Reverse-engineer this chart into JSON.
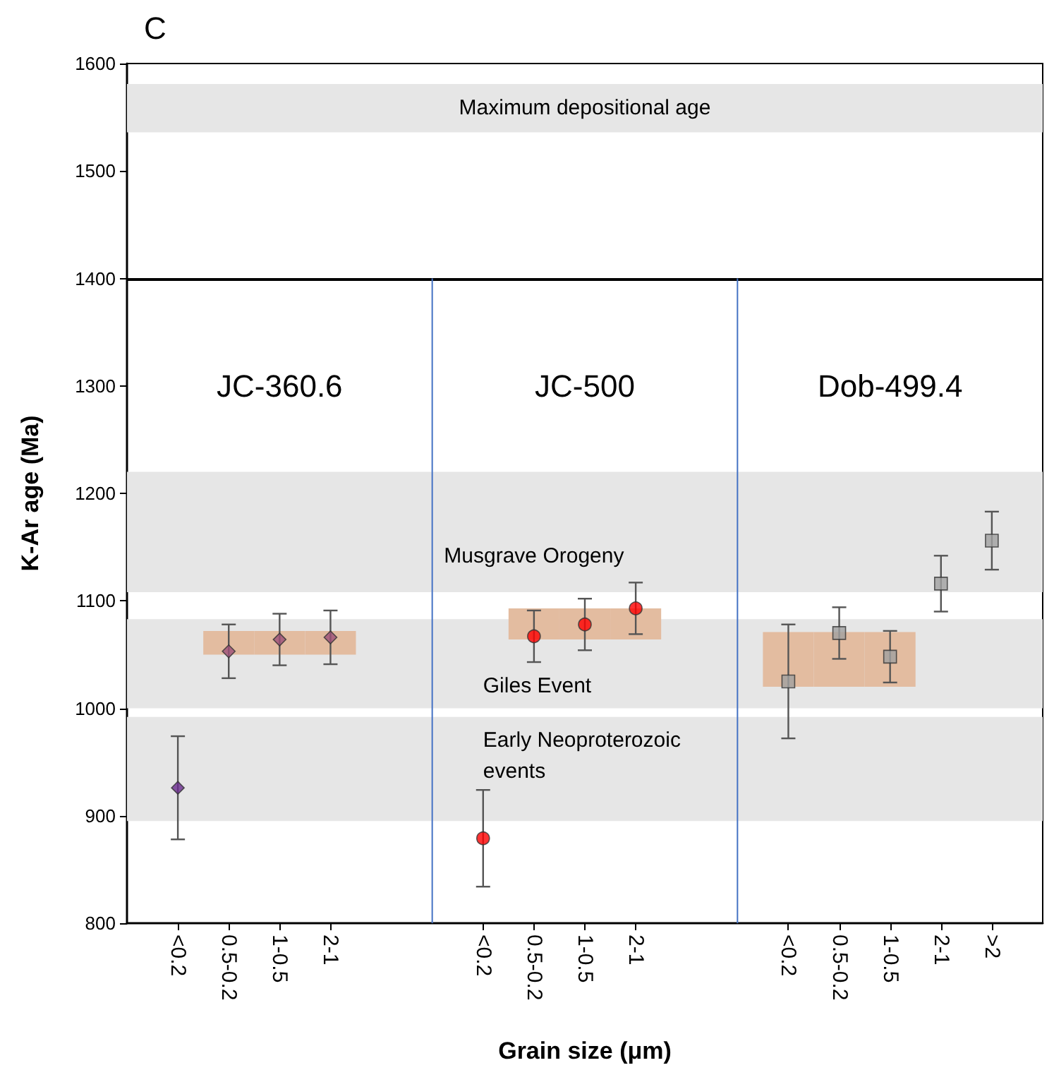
{
  "chart_data": {
    "type": "scatter",
    "title": "C",
    "xlabel": "Grain size (μm)",
    "ylabel": "K-Ar age (Ma)",
    "categories": [
      null,
      "<0.2",
      "0.5-0.2",
      "1-0.5",
      "2-1",
      null,
      null,
      "<0.2",
      "0.5-0.2",
      "1-0.5",
      "2-1",
      null,
      null,
      "<0.2",
      "0.5-0.2",
      "1-0.5",
      "2-1",
      ">2",
      null
    ],
    "ylim": [
      800,
      1600
    ],
    "yticks": [
      800,
      900,
      1000,
      1100,
      1200,
      1300,
      1400,
      1500,
      1600
    ],
    "series": [
      {
        "type": "bar",
        "color": "#e3bca0",
        "base": [
          null,
          null,
          1050,
          1050,
          1050,
          null,
          null,
          null,
          1064,
          1064,
          1064,
          null,
          null,
          1020,
          1020,
          1020,
          null,
          null,
          null
        ],
        "values": [
          null,
          null,
          22,
          22,
          22,
          null,
          null,
          null,
          29,
          29,
          29,
          null,
          null,
          51,
          51,
          51,
          null,
          null,
          null
        ]
      },
      {
        "marker": "diamond",
        "colors": [
          null,
          "#6a2c8e",
          "#9c4f78",
          "#9c4f78",
          "#9c4f78",
          null,
          null,
          null,
          null,
          null,
          null,
          null,
          null,
          null,
          null,
          null,
          null,
          null,
          null
        ],
        "values": [
          null,
          926,
          1053,
          1064,
          1066,
          null,
          null,
          null,
          null,
          null,
          null,
          null,
          null,
          null,
          null,
          null,
          null,
          null,
          null
        ],
        "errors": [
          null,
          48,
          25,
          24,
          25,
          null,
          null,
          null,
          null,
          null,
          null,
          null,
          null,
          null,
          null,
          null,
          null,
          null,
          null
        ]
      },
      {
        "marker": "circle",
        "color": "#ff0000",
        "values": [
          null,
          null,
          null,
          null,
          null,
          null,
          null,
          879,
          1067,
          1078,
          1093,
          null,
          null,
          null,
          null,
          null,
          null,
          null,
          null
        ],
        "errors": [
          null,
          null,
          null,
          null,
          null,
          null,
          null,
          45,
          24,
          24,
          24,
          null,
          null,
          null,
          null,
          null,
          null,
          null,
          null
        ]
      },
      {
        "marker": "square",
        "color": "#a0a0a0",
        "values": [
          null,
          null,
          null,
          null,
          null,
          null,
          null,
          null,
          null,
          null,
          null,
          null,
          null,
          1025,
          1070,
          1048,
          1116,
          1156,
          null
        ],
        "errors": [
          null,
          null,
          null,
          null,
          null,
          null,
          null,
          null,
          null,
          null,
          null,
          null,
          null,
          53,
          24,
          24,
          26,
          27,
          null
        ]
      }
    ],
    "bands": [
      {
        "axis": "y",
        "from": 1536,
        "to": 1581,
        "label": "Maximum depositional age",
        "color": "#e6e6e6"
      },
      {
        "axis": "y",
        "from": 1108,
        "to": 1220,
        "label": "Musgrave Orogeny",
        "color": "#e6e6e6"
      },
      {
        "axis": "y",
        "from": 1000,
        "to": 1083,
        "label": "Giles Event",
        "color": "#e6e6e6"
      },
      {
        "axis": "y",
        "from": 895,
        "to": 992,
        "label": "Early Neoproterozoic events",
        "color": "#e6e6e6"
      }
    ],
    "ref_lines": [
      {
        "axis": "y",
        "value": 1400,
        "color": "#000000"
      }
    ],
    "annotations": [
      "JC-360.6",
      "JC-500",
      "Dob-499.4"
    ]
  }
}
